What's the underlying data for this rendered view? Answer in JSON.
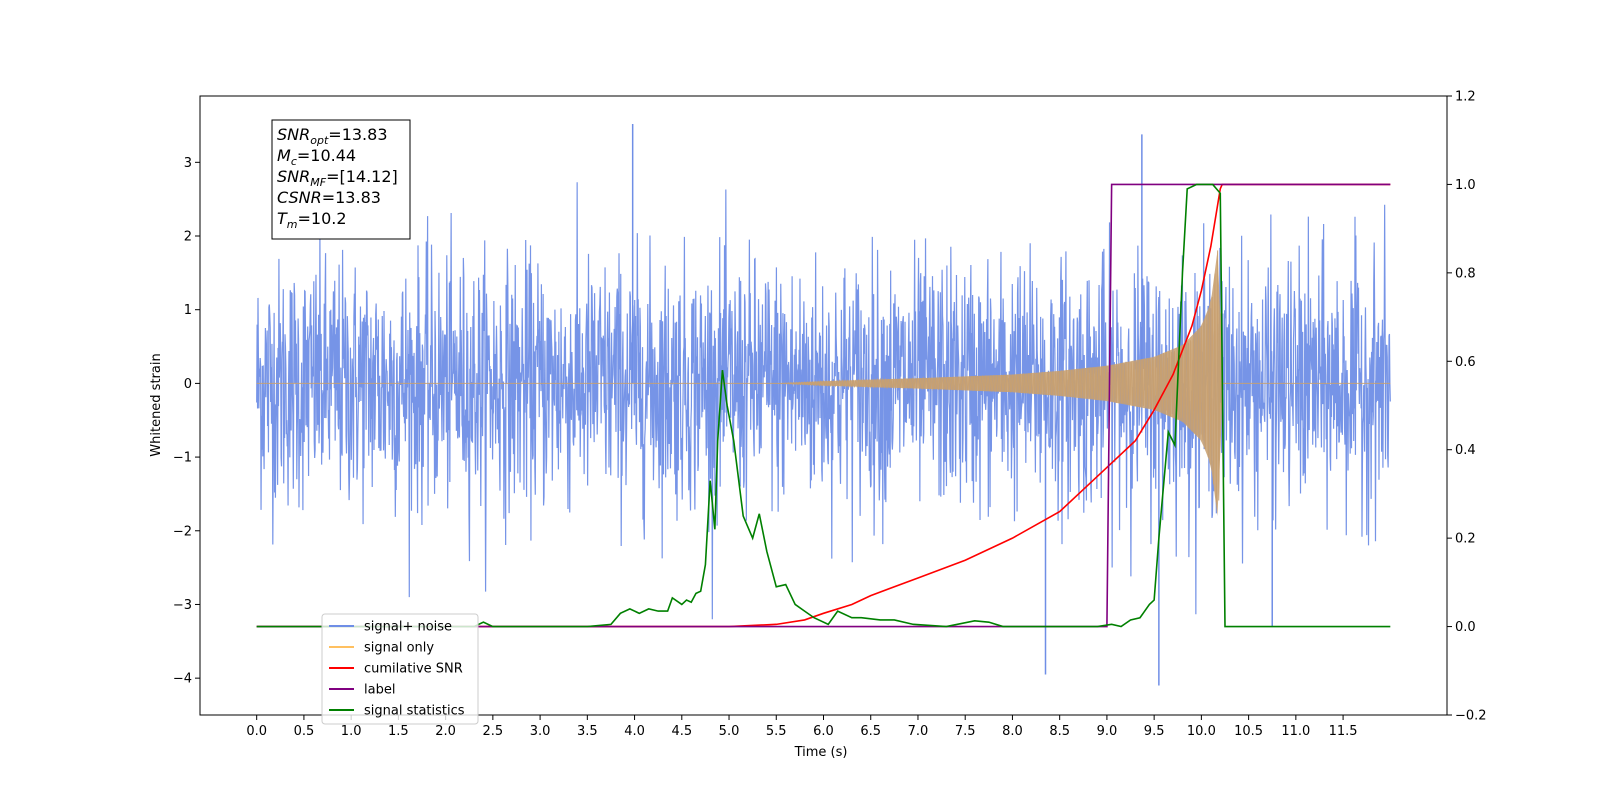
{
  "chart_data": {
    "type": "line",
    "xlabel": "Time (s)",
    "ylabel_left": "Whitened strain",
    "ylabel_right": "",
    "xlim": [
      -0.6,
      12.6
    ],
    "ylim_left": [
      -4.5,
      3.9
    ],
    "ylim_right": [
      -0.2,
      1.2
    ],
    "x_ticks": [
      0.0,
      0.5,
      1.0,
      1.5,
      2.0,
      2.5,
      3.0,
      3.5,
      4.0,
      4.5,
      5.0,
      5.5,
      6.0,
      6.5,
      7.0,
      7.5,
      8.0,
      8.5,
      9.0,
      9.5,
      10.0,
      10.5,
      11.0,
      11.5
    ],
    "x_tick_labels": [
      "0.0",
      "0.5",
      "1.0",
      "1.5",
      "2.0",
      "2.5",
      "3.0",
      "3.5",
      "4.0",
      "4.5",
      "5.0",
      "5.5",
      "6.0",
      "6.5",
      "7.0",
      "7.5",
      "8.0",
      "8.5",
      "9.0",
      "9.5",
      "10.0",
      "10.5",
      "11.0",
      "11.5"
    ],
    "y_left_ticks": [
      -4,
      -3,
      -2,
      -1,
      0,
      1,
      2,
      3
    ],
    "y_left_tick_labels": [
      "−4",
      "−3",
      "−2",
      "−1",
      "0",
      "1",
      "2",
      "3"
    ],
    "y_right_ticks": [
      -0.2,
      0.0,
      0.2,
      0.4,
      0.6,
      0.8,
      1.0,
      1.2
    ],
    "y_right_tick_labels": [
      "−0.2",
      "0.0",
      "0.2",
      "0.4",
      "0.6",
      "0.8",
      "1.0",
      "1.2"
    ],
    "grid": false,
    "legend_placement": "lower-left",
    "annotation": {
      "lines": [
        {
          "sym": "SNR",
          "sub": "opt",
          "val": "=13.83"
        },
        {
          "sym": "M",
          "sub": "c",
          "val": "=10.44"
        },
        {
          "sym": "SNR",
          "sub": "MF",
          "val": "=[14.12]"
        },
        {
          "sym": "CSNR",
          "sub": "",
          "val": "=13.83"
        },
        {
          "sym": "T",
          "sub": "m",
          "val": "=10.2"
        }
      ]
    },
    "series": [
      {
        "name": "signal+ noise",
        "color": "#6f8ee6",
        "axis": "left",
        "kind": "noise_band",
        "x_range": [
          0.0,
          12.0
        ],
        "typical_abs_amplitude": 2.0,
        "extremes": [
          [
            3.98,
            3.52
          ],
          [
            9.55,
            -4.1
          ],
          [
            8.35,
            -3.95
          ],
          [
            9.37,
            3.38
          ],
          [
            10.75,
            -3.3
          ]
        ]
      },
      {
        "name": "signal only",
        "color": "#c8a070",
        "axis": "left",
        "kind": "chirp_envelope",
        "envelope_x": [
          0.0,
          5.5,
          6.0,
          7.0,
          8.0,
          8.5,
          9.0,
          9.5,
          9.8,
          10.0,
          10.1,
          10.18,
          10.22,
          12.0
        ],
        "envelope_amp": [
          0.0,
          0.0,
          0.03,
          0.07,
          0.12,
          0.17,
          0.24,
          0.36,
          0.52,
          0.78,
          1.1,
          1.9,
          0.0,
          0.0
        ]
      },
      {
        "name": "cumilative SNR",
        "color": "#ff0000",
        "axis": "right",
        "x": [
          0.0,
          4.0,
          5.0,
          5.5,
          5.8,
          6.0,
          6.3,
          6.5,
          7.0,
          7.5,
          8.0,
          8.5,
          9.0,
          9.3,
          9.5,
          9.7,
          9.9,
          10.0,
          10.1,
          10.2,
          10.22,
          12.0
        ],
        "values": [
          0.0,
          0.0,
          0.0,
          0.005,
          0.015,
          0.03,
          0.05,
          0.07,
          0.11,
          0.15,
          0.2,
          0.26,
          0.36,
          0.42,
          0.49,
          0.57,
          0.68,
          0.76,
          0.86,
          0.99,
          1.0,
          1.0
        ]
      },
      {
        "name": "label",
        "color": "#800080",
        "axis": "right",
        "x": [
          0.0,
          9.0,
          9.05,
          10.2,
          10.2,
          12.0
        ],
        "values": [
          0.0,
          0.0,
          1.0,
          1.0,
          1.0,
          1.0
        ]
      },
      {
        "name": "signal statistics",
        "color": "#008000",
        "axis": "right",
        "x": [
          0.0,
          2.3,
          2.4,
          2.5,
          3.0,
          3.5,
          3.75,
          3.85,
          3.95,
          4.05,
          4.15,
          4.25,
          4.35,
          4.4,
          4.5,
          4.55,
          4.6,
          4.65,
          4.7,
          4.75,
          4.8,
          4.85,
          4.88,
          4.93,
          4.98,
          5.05,
          5.15,
          5.25,
          5.32,
          5.4,
          5.5,
          5.6,
          5.7,
          5.8,
          5.9,
          6.05,
          6.15,
          6.3,
          6.4,
          6.6,
          6.75,
          6.95,
          7.3,
          7.6,
          7.75,
          7.9,
          8.3,
          8.9,
          9.05,
          9.15,
          9.25,
          9.35,
          9.45,
          9.5,
          9.55,
          9.65,
          9.72,
          9.8,
          9.85,
          9.95,
          10.05,
          10.12,
          10.2,
          10.25,
          12.0
        ],
        "values": [
          0.0,
          0.0,
          0.01,
          0.0,
          0.0,
          0.0,
          0.005,
          0.03,
          0.04,
          0.03,
          0.04,
          0.035,
          0.035,
          0.065,
          0.05,
          0.06,
          0.055,
          0.075,
          0.08,
          0.14,
          0.33,
          0.22,
          0.42,
          0.58,
          0.5,
          0.42,
          0.25,
          0.2,
          0.255,
          0.17,
          0.09,
          0.095,
          0.05,
          0.035,
          0.02,
          0.005,
          0.035,
          0.02,
          0.02,
          0.015,
          0.015,
          0.005,
          0.0,
          0.013,
          0.01,
          0.0,
          0.0,
          0.0,
          0.005,
          0.0,
          0.015,
          0.02,
          0.05,
          0.06,
          0.2,
          0.44,
          0.41,
          0.8,
          0.99,
          1.0,
          1.0,
          1.0,
          0.98,
          0.0,
          0.0
        ]
      }
    ],
    "legend_entries": [
      {
        "name": "signal+ noise",
        "color": "#6f8ee6"
      },
      {
        "name": "signal only",
        "color": "#ffc060"
      },
      {
        "name": "cumilative SNR",
        "color": "#ff0000"
      },
      {
        "name": "label",
        "color": "#800080"
      },
      {
        "name": "signal statistics",
        "color": "#008000"
      }
    ]
  }
}
